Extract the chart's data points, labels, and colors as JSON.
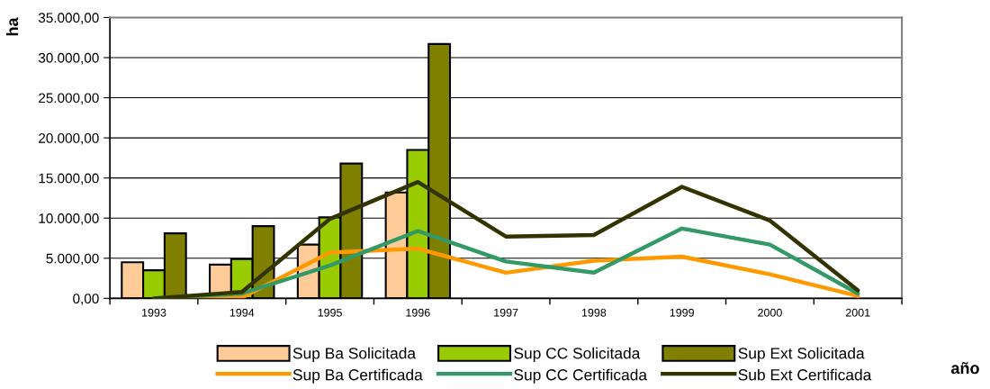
{
  "chart_data": {
    "type": "bar",
    "ylabel": "ha",
    "xlabel": "año",
    "categories": [
      "1993",
      "1994",
      "1995",
      "1996",
      "1997",
      "1998",
      "1999",
      "2000",
      "2001"
    ],
    "series": [
      {
        "name": "Sup Ba Solicitada",
        "color": "#ffcc99",
        "values": [
          4500,
          4200,
          6700,
          13200,
          null,
          null,
          null,
          null,
          null
        ]
      },
      {
        "name": "Sup CC Solicitada",
        "color": "#99cc00",
        "values": [
          3500,
          4900,
          10100,
          18500,
          null,
          null,
          null,
          null,
          null
        ]
      },
      {
        "name": "Sup Ext Solicitada",
        "color": "#808000",
        "values": [
          8100,
          9000,
          16800,
          31700,
          null,
          null,
          null,
          null,
          null
        ]
      },
      {
        "name": "Sup Ba Certificada",
        "type": "line",
        "color": "#ff9900",
        "values": [
          0,
          100,
          5700,
          6200,
          3200,
          4700,
          5200,
          3000,
          300
        ]
      },
      {
        "name": "Sup CC Certificada",
        "type": "line",
        "color": "#339966",
        "values": [
          0,
          600,
          4100,
          8400,
          4600,
          3200,
          8700,
          6700,
          600
        ]
      },
      {
        "name": "Sub Ext Certificada",
        "type": "line",
        "color": "#333300",
        "values": [
          0,
          800,
          9900,
          14500,
          7700,
          7900,
          13900,
          9700,
          1000
        ]
      }
    ],
    "ylim": [
      0,
      35000
    ],
    "yticks": [
      {
        "value": 0,
        "label": "0,00"
      },
      {
        "value": 5000,
        "label": "5.000,00"
      },
      {
        "value": 10000,
        "label": "10.000,00"
      },
      {
        "value": 15000,
        "label": "15.000,00"
      },
      {
        "value": 20000,
        "label": "20.000,00"
      },
      {
        "value": 25000,
        "label": "25.000,00"
      },
      {
        "value": 30000,
        "label": "30.000,00"
      },
      {
        "value": 35000,
        "label": "35.000,00"
      }
    ],
    "grid": "y",
    "legend": "bottom"
  }
}
